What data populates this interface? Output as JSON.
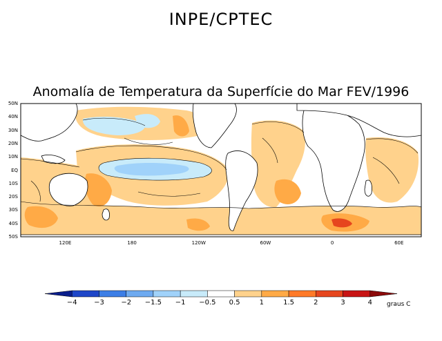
{
  "header": {
    "title": "INPE/CPTEC"
  },
  "map": {
    "title": "Anomalía de Temperatura da Superfície do Mar FEV/1996",
    "lat_labels": [
      "50N",
      "40N",
      "30N",
      "20N",
      "10N",
      "EQ",
      "10S",
      "20S",
      "30S",
      "40S",
      "50S"
    ],
    "lon_labels": [
      "120E",
      "180",
      "120W",
      "60W",
      "0",
      "60E"
    ],
    "lon_values": [
      120,
      180,
      240,
      300,
      360,
      420
    ],
    "lon_range": [
      80,
      440
    ],
    "lat_range": [
      -50,
      50
    ]
  },
  "colorbar": {
    "unit": "graus C",
    "ticks": [
      "-4",
      "-3",
      "-2",
      "-1.5",
      "-1",
      "-0.5",
      "0.5",
      "1",
      "1.5",
      "2",
      "3",
      "4"
    ],
    "colors": [
      "#0a1e8c",
      "#1e46c8",
      "#3c7ee6",
      "#6eaaf0",
      "#a0d2fa",
      "#c8ebfa",
      "#ffffff",
      "#ffd28c",
      "#ffaa46",
      "#ff7a28",
      "#e6461e",
      "#c81414",
      "#8c0a0a"
    ]
  }
}
